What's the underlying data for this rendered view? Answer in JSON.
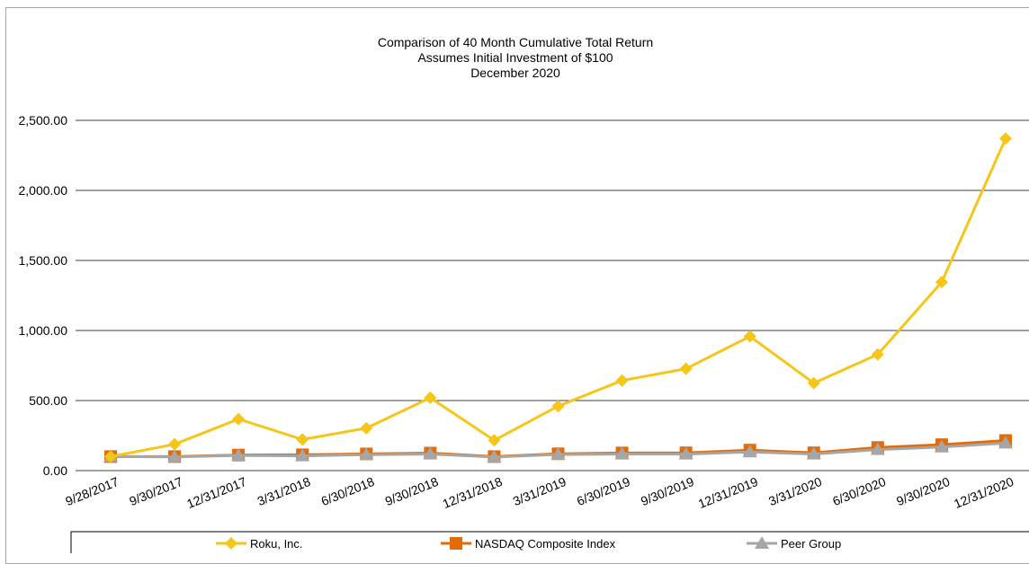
{
  "chart_data": {
    "type": "line",
    "title": [
      "Comparison of 40 Month Cumulative Total Return",
      "Assumes Initial Investment of $100",
      "December 2020"
    ],
    "xlabel": "",
    "ylabel": "",
    "ylim": [
      0,
      2500
    ],
    "yticks": [
      "0.00",
      "500.00",
      "1,000.00",
      "1,500.00",
      "2,000.00",
      "2,500.00"
    ],
    "grid": true,
    "legend_position": "bottom",
    "categories": [
      "9/28/2017",
      "9/30/2017",
      "12/31/2017",
      "3/31/2018",
      "6/30/2018",
      "9/30/2018",
      "12/31/2018",
      "3/31/2019",
      "6/30/2019",
      "9/30/2019",
      "12/31/2019",
      "3/31/2020",
      "6/30/2020",
      "9/30/2020",
      "12/31/2020"
    ],
    "series": [
      {
        "name": "Roku, Inc.",
        "color": "#f5c518",
        "marker": "diamond",
        "values": [
          100,
          188,
          368,
          222,
          303,
          520,
          216,
          460,
          643,
          727,
          958,
          624,
          829,
          1345,
          2370
        ]
      },
      {
        "name": "NASDAQ Composite Index",
        "color": "#e36c0a",
        "marker": "square",
        "values": [
          100,
          100,
          111,
          113,
          119,
          125,
          100,
          120,
          126,
          127,
          146,
          127,
          165,
          185,
          215
        ]
      },
      {
        "name": "Peer Group",
        "color": "#a6a6a6",
        "marker": "triangle",
        "values": [
          100,
          98,
          108,
          105,
          114,
          118,
          97,
          115,
          118,
          118,
          133,
          118,
          150,
          168,
          196
        ]
      }
    ]
  }
}
